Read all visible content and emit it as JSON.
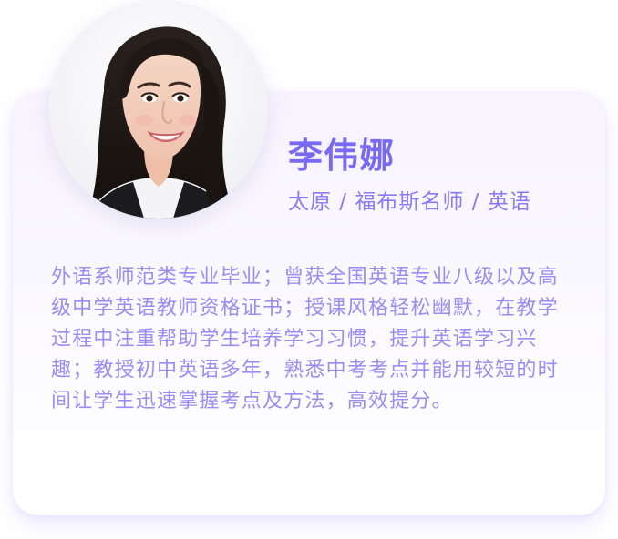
{
  "profile": {
    "name": "李伟娜",
    "subtitle": "太原 / 福布斯名师 / 英语",
    "bio": "外语系师范类专业毕业；曾获全国英语专业八级以及高级中学英语教师资格证书；授课风格轻松幽默，在教学过程中注重帮助学生培养学习习惯，提升英语学习兴趣；教授初中英语多年，熟悉中考考点并能用较短的时间让学生迅速掌握考点及方法，高效提分。"
  },
  "colors": {
    "accent": "#7a6af3",
    "subtitle": "#8a7af5",
    "bio_text": "#9a8df3",
    "card_background_top": "#f7f3ff",
    "card_background_bottom": "#ffffff"
  },
  "icons": {
    "avatar": "teacher-portrait-photo"
  }
}
